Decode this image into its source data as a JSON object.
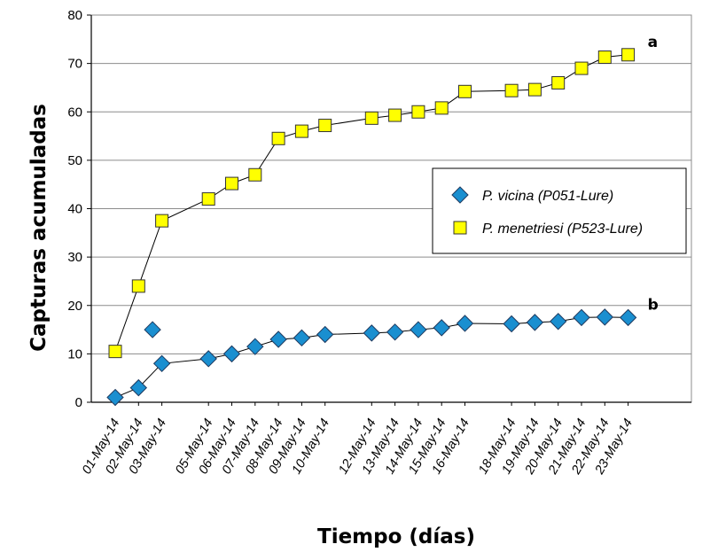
{
  "chart_data": {
    "type": "line",
    "title": "",
    "xlabel": "Tiempo (días)",
    "ylabel": "Capturas acumuladas",
    "ylim": [
      0,
      80
    ],
    "yticks": [
      0,
      10,
      20,
      30,
      40,
      50,
      60,
      70,
      80
    ],
    "grid": "horizontal",
    "legend_position": "right-middle",
    "x_axis_type": "date",
    "xtick_labels": [
      {
        "date": "2014-05-01",
        "label": "01-May-14"
      },
      {
        "date": "2014-05-02",
        "label": "02-May-14"
      },
      {
        "date": "2014-05-03",
        "label": "03-May-14"
      },
      {
        "date": "2014-05-05",
        "label": "05-May-14"
      },
      {
        "date": "2014-05-06",
        "label": "06-May-14"
      },
      {
        "date": "2014-05-07",
        "label": "07-May-14"
      },
      {
        "date": "2014-05-08",
        "label": "08-May-14"
      },
      {
        "date": "2014-05-09",
        "label": "09-May-14"
      },
      {
        "date": "2014-05-10",
        "label": "10-May-14"
      },
      {
        "date": "2014-05-12",
        "label": "12-May-14"
      },
      {
        "date": "2014-05-13",
        "label": "13-May-14"
      },
      {
        "date": "2014-05-14",
        "label": "14-May-14"
      },
      {
        "date": "2014-05-15",
        "label": "15-May-14"
      },
      {
        "date": "2014-05-16",
        "label": "16-May-14"
      },
      {
        "date": "2014-05-18",
        "label": "18-May-14"
      },
      {
        "date": "2014-05-19",
        "label": "19-May-14"
      },
      {
        "date": "2014-05-20",
        "label": "20-May-14"
      },
      {
        "date": "2014-05-21",
        "label": "21-May-14"
      },
      {
        "date": "2014-05-22",
        "label": "22-May-14"
      },
      {
        "date": "2014-05-23",
        "label": "23-May-14"
      }
    ],
    "series": [
      {
        "name": "P. vicina (P051-Lure)",
        "marker": "diamond",
        "color": "#1a8fd0",
        "points": [
          {
            "x": "2014-05-01",
            "y": 1
          },
          {
            "x": "2014-05-02",
            "y": 3
          },
          {
            "x": "2014-05-03",
            "y": 8
          },
          {
            "x": "2014-05-05",
            "y": 9
          },
          {
            "x": "2014-05-06",
            "y": 10
          },
          {
            "x": "2014-05-07",
            "y": 11.5
          },
          {
            "x": "2014-05-08",
            "y": 13
          },
          {
            "x": "2014-05-09",
            "y": 13.3
          },
          {
            "x": "2014-05-10",
            "y": 14
          },
          {
            "x": "2014-05-12",
            "y": 14.3
          },
          {
            "x": "2014-05-13",
            "y": 14.5
          },
          {
            "x": "2014-05-14",
            "y": 15
          },
          {
            "x": "2014-05-15",
            "y": 15.4
          },
          {
            "x": "2014-05-16",
            "y": 16.3
          },
          {
            "x": "2014-05-18",
            "y": 16.2
          },
          {
            "x": "2014-05-19",
            "y": 16.5
          },
          {
            "x": "2014-05-20",
            "y": 16.7
          },
          {
            "x": "2014-05-21",
            "y": 17.5
          },
          {
            "x": "2014-05-22",
            "y": 17.6
          },
          {
            "x": "2014-05-23",
            "y": 17.5
          }
        ],
        "outlier": {
          "x": "2014-05-02",
          "x_offset_days": 0.6,
          "y": 15
        }
      },
      {
        "name": "P. menetriesi (P523-Lure)",
        "marker": "square",
        "color": "#ffff00",
        "points": [
          {
            "x": "2014-05-01",
            "y": 10.5
          },
          {
            "x": "2014-05-02",
            "y": 24
          },
          {
            "x": "2014-05-03",
            "y": 37.5
          },
          {
            "x": "2014-05-05",
            "y": 42
          },
          {
            "x": "2014-05-06",
            "y": 45.2
          },
          {
            "x": "2014-05-07",
            "y": 47
          },
          {
            "x": "2014-05-08",
            "y": 54.5
          },
          {
            "x": "2014-05-09",
            "y": 56
          },
          {
            "x": "2014-05-10",
            "y": 57.2
          },
          {
            "x": "2014-05-12",
            "y": 58.7
          },
          {
            "x": "2014-05-13",
            "y": 59.3
          },
          {
            "x": "2014-05-14",
            "y": 60
          },
          {
            "x": "2014-05-15",
            "y": 60.8
          },
          {
            "x": "2014-05-16",
            "y": 64.2
          },
          {
            "x": "2014-05-18",
            "y": 64.4
          },
          {
            "x": "2014-05-19",
            "y": 64.6
          },
          {
            "x": "2014-05-20",
            "y": 66
          },
          {
            "x": "2014-05-21",
            "y": 69
          },
          {
            "x": "2014-05-22",
            "y": 71.3
          },
          {
            "x": "2014-05-23",
            "y": 71.8
          }
        ]
      }
    ],
    "annotations": [
      {
        "text": "a",
        "series": "P. menetriesi (P523-Lure)"
      },
      {
        "text": "b",
        "series": "P. vicina (P051-Lure)"
      }
    ]
  }
}
